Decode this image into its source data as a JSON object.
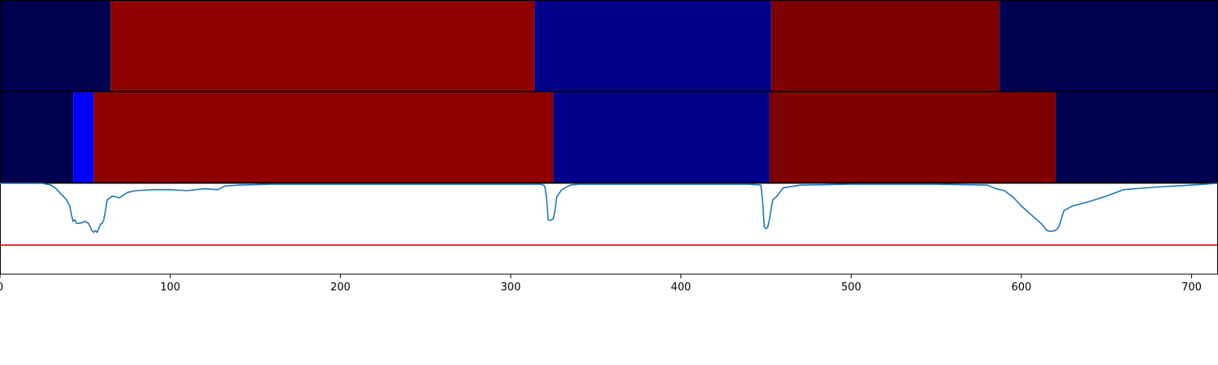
{
  "chart_data": {
    "type": "heatmap",
    "title": "",
    "xlabel": "",
    "ylabel": "",
    "xlim": [
      0,
      715
    ],
    "x_ticks": [
      0,
      100,
      200,
      300,
      400,
      500,
      600,
      700
    ],
    "x_tick_labels": [
      "0",
      "100",
      "200",
      "300",
      "400",
      "500",
      "600",
      "700"
    ],
    "grid": false,
    "legend": "none",
    "segment_rows": [
      {
        "segments": [
          {
            "start": 0,
            "end": 65,
            "color": "#000050"
          },
          {
            "start": 65,
            "end": 314,
            "color": "#8f0000"
          },
          {
            "start": 314,
            "end": 453,
            "color": "#00008b"
          },
          {
            "start": 453,
            "end": 587,
            "color": "#7f0000"
          },
          {
            "start": 587,
            "end": 715,
            "color": "#000050"
          }
        ]
      },
      {
        "segments": [
          {
            "start": 0,
            "end": 43,
            "color": "#000050"
          },
          {
            "start": 43,
            "end": 55,
            "color": "#0000ff"
          },
          {
            "start": 55,
            "end": 325,
            "color": "#8f0000"
          },
          {
            "start": 325,
            "end": 452,
            "color": "#00008b"
          },
          {
            "start": 452,
            "end": 620,
            "color": "#7f0000"
          },
          {
            "start": 620,
            "end": 715,
            "color": "#000050"
          }
        ]
      }
    ],
    "line_panel": {
      "ylim": [
        0.0,
        1.0
      ],
      "threshold": 0.32,
      "threshold_color": "#e00000",
      "line_color": "#1f77b4",
      "x": [
        0,
        25,
        30,
        33,
        36,
        39,
        41,
        42,
        43,
        44,
        45,
        47,
        50,
        52,
        54,
        55,
        56,
        57,
        58,
        59,
        60,
        61,
        63,
        66,
        70,
        75,
        80,
        90,
        100,
        110,
        120,
        128,
        132,
        140,
        160,
        200,
        250,
        300,
        318,
        320,
        321,
        322,
        323,
        324,
        325,
        326,
        327,
        330,
        335,
        340,
        360,
        400,
        440,
        447,
        448,
        449,
        450,
        451,
        452,
        453,
        454,
        456,
        458,
        460,
        470,
        500,
        550,
        580,
        585,
        590,
        595,
        600,
        603,
        606,
        609,
        612,
        615,
        617,
        620,
        622,
        625,
        630,
        640,
        650,
        660,
        680,
        700,
        715
      ],
      "y": [
        1.0,
        1.0,
        0.98,
        0.94,
        0.88,
        0.82,
        0.75,
        0.65,
        0.58,
        0.6,
        0.56,
        0.56,
        0.58,
        0.56,
        0.48,
        0.46,
        0.48,
        0.46,
        0.5,
        0.55,
        0.56,
        0.6,
        0.82,
        0.86,
        0.84,
        0.9,
        0.92,
        0.93,
        0.93,
        0.92,
        0.94,
        0.93,
        0.97,
        0.98,
        0.99,
        0.99,
        0.99,
        0.99,
        0.99,
        0.97,
        0.85,
        0.6,
        0.59,
        0.6,
        0.61,
        0.7,
        0.85,
        0.93,
        0.98,
        0.99,
        0.99,
        0.99,
        0.99,
        0.98,
        0.8,
        0.52,
        0.5,
        0.52,
        0.6,
        0.72,
        0.82,
        0.85,
        0.9,
        0.95,
        0.98,
        0.99,
        0.99,
        0.98,
        0.94,
        0.92,
        0.85,
        0.75,
        0.7,
        0.65,
        0.6,
        0.55,
        0.48,
        0.47,
        0.48,
        0.52,
        0.7,
        0.75,
        0.8,
        0.86,
        0.93,
        0.96,
        0.98,
        1.0
      ]
    }
  }
}
